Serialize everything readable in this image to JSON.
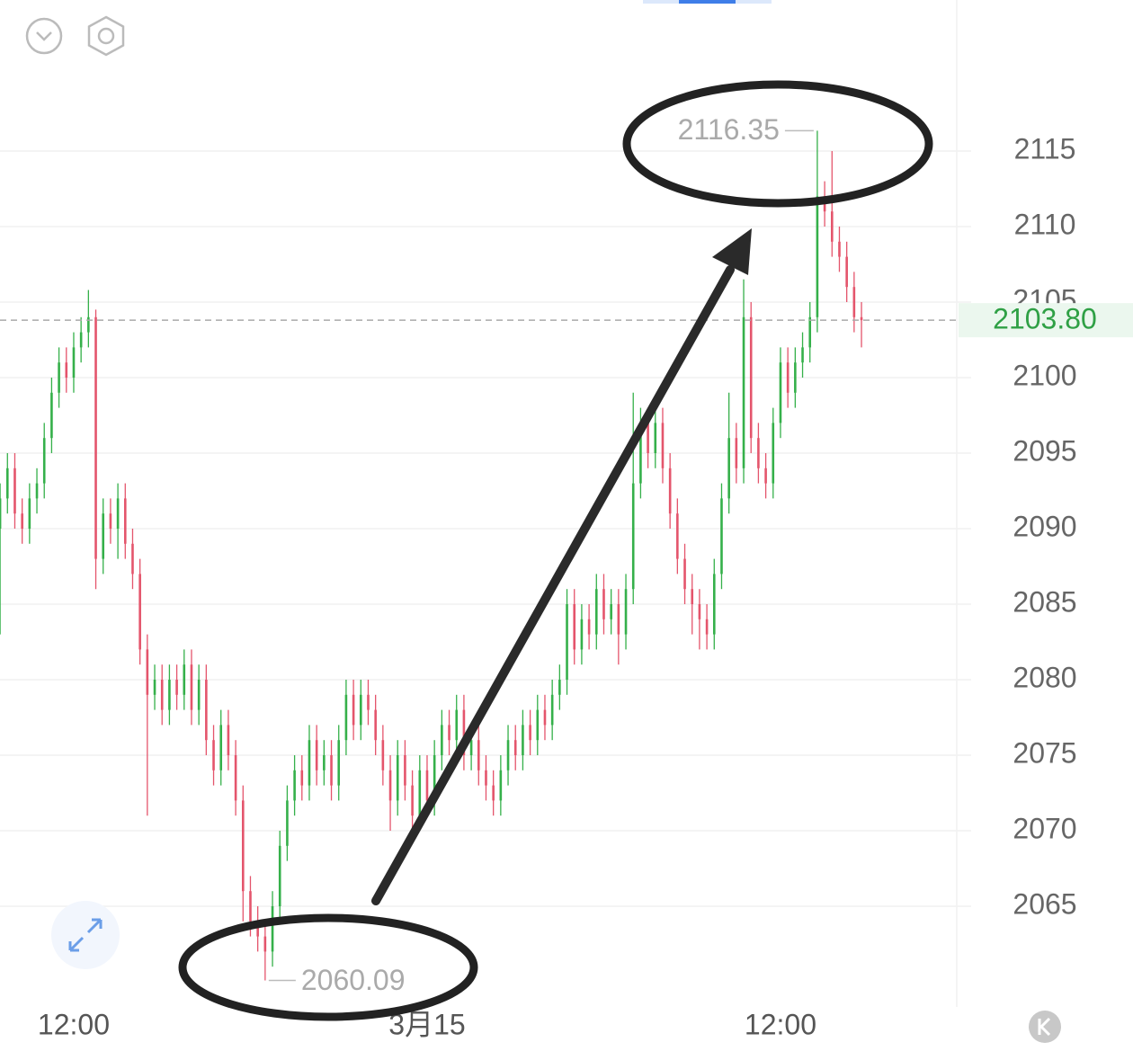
{
  "chart_data": {
    "type": "candlestick",
    "categories": [
      null,
      null,
      null,
      null,
      null,
      null,
      null,
      null,
      null,
      null,
      "12:00",
      null,
      null,
      null,
      null,
      null,
      null,
      null,
      null,
      null,
      null,
      null,
      null,
      null,
      null,
      null,
      null,
      null,
      null,
      null,
      null,
      null,
      null,
      null,
      null,
      null,
      null,
      null,
      null,
      null,
      null,
      null,
      null,
      null,
      null,
      null,
      null,
      null,
      null,
      null,
      null,
      null,
      null,
      null,
      null,
      null,
      null,
      null,
      "3月15",
      null,
      null,
      null,
      null,
      null,
      null,
      null,
      null,
      null,
      null,
      null,
      null,
      null,
      null,
      null,
      null,
      null,
      null,
      null,
      null,
      null,
      null,
      null,
      null,
      null,
      null,
      null,
      null,
      null,
      null,
      null,
      null,
      null,
      null,
      null,
      null,
      null,
      null,
      null,
      null,
      null,
      null,
      null,
      null,
      null,
      null,
      null,
      "12:00",
      null,
      null,
      null,
      null,
      null,
      null,
      null,
      null,
      null,
      null,
      null
    ],
    "open": [
      2090,
      2092,
      2094,
      2091,
      2090,
      2092,
      2093,
      2096,
      2099,
      2101,
      2100,
      2102,
      2103,
      2104,
      2088,
      2091,
      2090,
      2092,
      2089,
      2087,
      2082,
      2079,
      2080,
      2078,
      2080,
      2079,
      2081,
      2078,
      2080,
      2076,
      2074,
      2077,
      2075,
      2072,
      2066,
      2064,
      2063,
      2062,
      2065,
      2069,
      2072,
      2074,
      2073,
      2076,
      2074,
      2075,
      2073,
      2076,
      2079,
      2077,
      2079,
      2078,
      2076,
      2074,
      2072,
      2075,
      2073,
      2071,
      2074,
      2072,
      2075,
      2077,
      2076,
      2078,
      2075,
      2076,
      2074,
      2073,
      2072,
      2074,
      2076,
      2075,
      2077,
      2076,
      2078,
      2077,
      2079,
      2080,
      2085,
      2082,
      2084,
      2083,
      2086,
      2084,
      2085,
      2083,
      2086,
      2093,
      2097,
      2095,
      2097,
      2094,
      2091,
      2088,
      2086,
      2085,
      2084,
      2083,
      2087,
      2092,
      2096,
      2094,
      2104,
      2096,
      2094,
      2093,
      2097,
      2101,
      2099,
      2101,
      2102,
      2104,
      2112,
      2111,
      2109,
      2108,
      2106,
      2104
    ],
    "high": [
      2093,
      2095,
      2095,
      2092,
      2093,
      2094,
      2097,
      2100,
      2102,
      2102,
      2103,
      2104,
      2105.8,
      2104.5,
      2092,
      2092,
      2093,
      2093,
      2090,
      2088,
      2083,
      2081,
      2081,
      2081,
      2081,
      2082,
      2082,
      2081,
      2081,
      2077,
      2078,
      2078,
      2076,
      2073,
      2067,
      2065,
      2064,
      2066,
      2070,
      2073,
      2075,
      2075,
      2077,
      2077,
      2076,
      2076,
      2077,
      2080,
      2080,
      2080,
      2080,
      2079,
      2077,
      2075,
      2076,
      2076,
      2074,
      2075,
      2075,
      2076,
      2078,
      2078,
      2079,
      2079,
      2077,
      2077,
      2075,
      2074,
      2075,
      2077,
      2077,
      2078,
      2078,
      2079,
      2079,
      2080,
      2081,
      2086,
      2086,
      2085,
      2085,
      2087,
      2087,
      2086,
      2086,
      2087,
      2099,
      2098,
      2098,
      2098,
      2098,
      2095,
      2092,
      2089,
      2087,
      2086,
      2085,
      2088,
      2093,
      2099,
      2097,
      2106.5,
      2105,
      2097,
      2095,
      2098,
      2102,
      2102,
      2102,
      2103,
      2105,
      2116.35,
      2113,
      2115,
      2110,
      2109,
      2107,
      2105
    ],
    "low": [
      2083,
      2091,
      2090,
      2089,
      2089,
      2091,
      2092,
      2095,
      2098,
      2099,
      2099,
      2101,
      2102,
      2086,
      2087,
      2089,
      2088,
      2088,
      2086,
      2081,
      2071,
      2078,
      2077,
      2077,
      2078,
      2078,
      2077,
      2077,
      2075,
      2073,
      2073,
      2074,
      2071,
      2064,
      2063,
      2062,
      2060.09,
      2061,
      2064,
      2068,
      2071,
      2072,
      2072,
      2073,
      2073,
      2072,
      2072,
      2075,
      2076,
      2076,
      2077,
      2075,
      2073,
      2070,
      2071,
      2072,
      2070,
      2070,
      2071,
      2071,
      2074,
      2075,
      2075,
      2074,
      2074,
      2073,
      2072,
      2071,
      2071,
      2073,
      2074,
      2074,
      2075,
      2075,
      2076,
      2076,
      2078,
      2079,
      2081,
      2081,
      2082,
      2082,
      2083,
      2083,
      2081,
      2082,
      2085,
      2092,
      2094,
      2094,
      2093,
      2090,
      2087,
      2085,
      2083,
      2082,
      2082,
      2082,
      2086,
      2091,
      2093,
      2093,
      2095,
      2093,
      2092,
      2092,
      2096,
      2098,
      2098,
      2100,
      2101,
      2103,
      2110,
      2108,
      2107,
      2105,
      2103,
      2102
    ],
    "close": [
      2092,
      2094,
      2091,
      2090,
      2092,
      2093,
      2096,
      2099,
      2101,
      2100,
      2102,
      2103,
      2104,
      2088,
      2091,
      2090,
      2092,
      2089,
      2087,
      2082,
      2079,
      2080,
      2078,
      2080,
      2079,
      2081,
      2078,
      2080,
      2076,
      2074,
      2077,
      2075,
      2072,
      2066,
      2064,
      2063,
      2062,
      2065,
      2069,
      2072,
      2074,
      2073,
      2076,
      2074,
      2075,
      2073,
      2076,
      2079,
      2077,
      2079,
      2078,
      2076,
      2074,
      2072,
      2075,
      2073,
      2071,
      2074,
      2072,
      2075,
      2077,
      2076,
      2078,
      2075,
      2076,
      2074,
      2073,
      2072,
      2074,
      2076,
      2075,
      2077,
      2076,
      2078,
      2077,
      2079,
      2080,
      2085,
      2082,
      2084,
      2083,
      2086,
      2084,
      2085,
      2083,
      2086,
      2093,
      2097,
      2095,
      2097,
      2094,
      2091,
      2088,
      2086,
      2085,
      2084,
      2083,
      2087,
      2092,
      2096,
      2094,
      2104,
      2096,
      2094,
      2093,
      2097,
      2101,
      2099,
      2101,
      2102,
      2104,
      2112,
      2111,
      2109,
      2108,
      2106,
      2104,
      2103.8
    ],
    "up_color": "#35b04a",
    "down_color": "#e4556c",
    "ylim": [
      2058,
      2125
    ],
    "yticks": [
      2065,
      2070,
      2075,
      2080,
      2085,
      2090,
      2095,
      2100,
      2105,
      2110,
      2115
    ],
    "grid": true,
    "last_price": {
      "value": 2103.8,
      "label": "2103.80"
    }
  }
}
